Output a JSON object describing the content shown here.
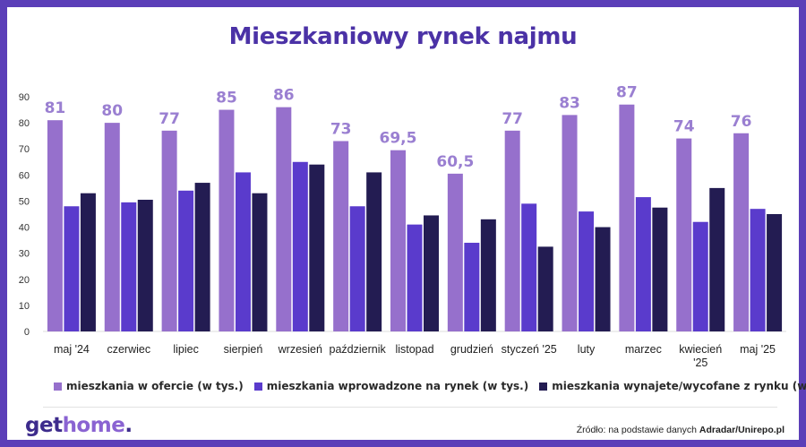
{
  "colors": {
    "background": "#5b3fb8",
    "title": "#4b32a6",
    "series": [
      "#9670cc",
      "#5a3bcc",
      "#231c52"
    ],
    "data_label": "#9a7fd1"
  },
  "logo": {
    "text_a": "get",
    "text_b": "home",
    "text_c": "."
  },
  "source": {
    "prefix": "Źródło: na podstawie danych ",
    "bold": "Adradar/Unirepo.pl"
  },
  "chart_data": {
    "type": "bar",
    "title": "Mieszkaniowy rynek najmu",
    "ylim": [
      0,
      90
    ],
    "yticks": [
      0,
      10,
      20,
      30,
      40,
      50,
      60,
      70,
      80,
      90
    ],
    "grid": false,
    "legend_position": "bottom",
    "categories": [
      [
        "maj '24"
      ],
      [
        "czerwiec"
      ],
      [
        "lipiec"
      ],
      [
        "sierpień"
      ],
      [
        "wrzesień"
      ],
      [
        "październik"
      ],
      [
        "listopad"
      ],
      [
        "grudzień"
      ],
      [
        "styczeń '25"
      ],
      [
        "luty"
      ],
      [
        "marzec"
      ],
      [
        "kwiecień",
        "'25"
      ],
      [
        "maj '25"
      ]
    ],
    "series": [
      {
        "name": "mieszkania w ofercie (w tys.)",
        "values": [
          81,
          80,
          77,
          85,
          86,
          73,
          69.5,
          60.5,
          77,
          83,
          87,
          74,
          76
        ],
        "labels": [
          "81",
          "80",
          "77",
          "85",
          "86",
          "73",
          "69,5",
          "60,5",
          "77",
          "83",
          "87",
          "74",
          "76"
        ]
      },
      {
        "name": "mieszkania wprowadzone na rynek (w tys.)",
        "values": [
          48,
          49.5,
          54,
          61,
          65,
          48,
          41,
          34,
          49,
          46,
          51.5,
          42,
          47
        ]
      },
      {
        "name": "mieszkania wynajete/wycofane z rynku (w tys.)",
        "values": [
          53,
          50.5,
          57,
          53,
          64,
          61,
          44.5,
          43,
          32.5,
          40,
          47.5,
          55,
          45
        ]
      }
    ]
  }
}
